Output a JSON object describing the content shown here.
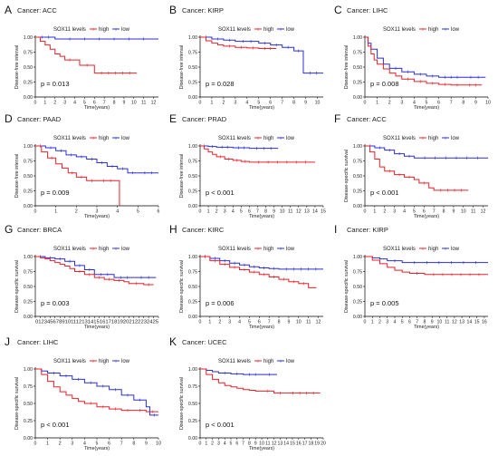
{
  "colors": {
    "high": "#e8202a",
    "low": "#2a2fd6",
    "axis": "#000000"
  },
  "legend": {
    "title": "SOX11 levels",
    "high": "high",
    "low": "low"
  },
  "panels": [
    {
      "letter": "A",
      "title": "Cancer: ACC",
      "ylabel": "Disease-free interval",
      "xlabel": "Time(years)",
      "pvalue": "p = 0.013",
      "p_italic": true
    },
    {
      "letter": "B",
      "title": "Cancer: KIRP",
      "ylabel": "Disease-free interval",
      "xlabel": "Time(years)",
      "pvalue": "p = 0.028",
      "p_italic": true
    },
    {
      "letter": "C",
      "title": "Cancer: LIHC",
      "ylabel": "Disease-free interval",
      "xlabel": "Time(years)",
      "pvalue": "p = 0.008",
      "p_italic": true
    },
    {
      "letter": "D",
      "title": "Cancer: PAAD",
      "ylabel": "Disease-free interval",
      "xlabel": "Time(years)",
      "pvalue": "p = 0.009",
      "p_italic": true
    },
    {
      "letter": "E",
      "title": "Cancer: PRAD",
      "ylabel": "Disease-free interval",
      "xlabel": "Time(years)",
      "pvalue": "p < 0.001",
      "p_italic": true
    },
    {
      "letter": "F",
      "title": "Cancer: ACC",
      "ylabel": "Disease-specific survival",
      "xlabel": "Time(years)",
      "pvalue": "p < 0.001",
      "p_italic": true
    },
    {
      "letter": "G",
      "title": "Cancer: BRCA",
      "ylabel": "Disease-specific survival",
      "xlabel": "Time(years)",
      "pvalue": "p = 0.003",
      "p_italic": true
    },
    {
      "letter": "H",
      "title": "Cancer: KIRC",
      "ylabel": "Disease-specific survival",
      "xlabel": "Time(years)",
      "pvalue": "p = 0.006",
      "p_italic": true
    },
    {
      "letter": "I",
      "title": "Cancer: KIRP",
      "ylabel": "Disease-specific survival",
      "xlabel": "Time(years)",
      "pvalue": "p = 0.005",
      "p_italic": true
    },
    {
      "letter": "J",
      "title": "Cancer: LIHC",
      "ylabel": "Disease-specific survival",
      "xlabel": "Time(years)",
      "pvalue": "p < 0.001",
      "p_italic": true
    },
    {
      "letter": "K",
      "title": "Cancer: UCEC",
      "ylabel": "Disease-specific survival",
      "xlabel": "Time(years)",
      "pvalue": "p < 0.001",
      "p_italic": true
    }
  ],
  "chart_data": [
    {
      "type": "line",
      "title": "Cancer: ACC",
      "xlabel": "Time(years)",
      "ylabel": "Disease-free interval",
      "xlim": [
        0,
        12.5
      ],
      "ylim": [
        0,
        1
      ],
      "xticks": [
        0,
        1,
        2,
        3,
        4,
        5,
        6,
        7,
        8,
        9,
        10,
        11,
        12
      ],
      "yticks": [
        0,
        0.25,
        0.5,
        0.75,
        1.0
      ],
      "series": [
        {
          "name": "high",
          "x": [
            0,
            0.5,
            1.0,
            1.5,
            2.0,
            2.5,
            3.0,
            4.0,
            4.5,
            6.0,
            10.3
          ],
          "y": [
            1.0,
            0.93,
            0.87,
            0.8,
            0.72,
            0.68,
            0.62,
            0.62,
            0.53,
            0.4,
            0.4
          ]
        },
        {
          "name": "low",
          "x": [
            0,
            2.0,
            12.5
          ],
          "y": [
            1.0,
            0.97,
            0.97
          ]
        }
      ]
    },
    {
      "type": "line",
      "title": "Cancer: KIRP",
      "xlabel": "Time(years)",
      "ylabel": "Disease-free interval",
      "xlim": [
        0,
        10.5
      ],
      "ylim": [
        0,
        1
      ],
      "xticks": [
        0,
        1,
        2,
        3,
        4,
        5,
        6,
        7,
        8,
        9,
        10
      ],
      "yticks": [
        0,
        0.25,
        0.5,
        0.75,
        1.0
      ],
      "series": [
        {
          "name": "high",
          "x": [
            0,
            0.5,
            1.0,
            1.5,
            2.0,
            3.0,
            4.0,
            5.0,
            6.5
          ],
          "y": [
            1.0,
            0.94,
            0.9,
            0.87,
            0.85,
            0.83,
            0.82,
            0.81,
            0.81
          ]
        },
        {
          "name": "low",
          "x": [
            0,
            1.0,
            2.0,
            3.0,
            5.0,
            6.0,
            7.0,
            8.0,
            8.8,
            10.5
          ],
          "y": [
            1.0,
            0.97,
            0.95,
            0.93,
            0.9,
            0.87,
            0.83,
            0.77,
            0.4,
            0.4
          ]
        }
      ]
    },
    {
      "type": "line",
      "title": "Cancer: LIHC",
      "xlabel": "Time(years)",
      "ylabel": "Disease-free interval",
      "xlim": [
        0,
        10
      ],
      "ylim": [
        0,
        1
      ],
      "xticks": [
        0,
        1,
        2,
        3,
        4,
        5,
        6,
        7,
        8,
        9,
        10
      ],
      "yticks": [
        0,
        0.25,
        0.5,
        0.75,
        1.0
      ],
      "series": [
        {
          "name": "high",
          "x": [
            0,
            0.25,
            0.5,
            0.75,
            1.0,
            1.5,
            2.0,
            2.5,
            3.0,
            4.0,
            5.0,
            6.0,
            7.0,
            8.0,
            9.5
          ],
          "y": [
            1.0,
            0.85,
            0.72,
            0.62,
            0.55,
            0.47,
            0.4,
            0.35,
            0.3,
            0.26,
            0.23,
            0.21,
            0.2,
            0.2,
            0.2
          ]
        },
        {
          "name": "low",
          "x": [
            0,
            0.25,
            0.5,
            1.0,
            1.5,
            2.0,
            3.0,
            4.0,
            5.0,
            6.0,
            8.0,
            9.8
          ],
          "y": [
            1.0,
            0.9,
            0.8,
            0.65,
            0.55,
            0.48,
            0.42,
            0.38,
            0.35,
            0.33,
            0.33,
            0.33
          ]
        }
      ]
    },
    {
      "type": "line",
      "title": "Cancer: PAAD",
      "xlabel": "Time(years)",
      "ylabel": "Disease-free interval",
      "xlim": [
        0,
        6
      ],
      "ylim": [
        0,
        1
      ],
      "xticks": [
        0,
        1,
        2,
        3,
        4,
        5,
        6
      ],
      "yticks": [
        0,
        0.25,
        0.5,
        0.75,
        1.0
      ],
      "series": [
        {
          "name": "high",
          "x": [
            0,
            0.3,
            0.6,
            1.0,
            1.3,
            1.6,
            2.0,
            2.5,
            3.0,
            4.0,
            4.1
          ],
          "y": [
            1.0,
            0.9,
            0.8,
            0.7,
            0.63,
            0.55,
            0.48,
            0.42,
            0.42,
            0.42,
            0.0
          ]
        },
        {
          "name": "low",
          "x": [
            0,
            0.5,
            1.0,
            1.5,
            2.0,
            2.5,
            3.0,
            3.5,
            4.0,
            4.5,
            5.0,
            6.0
          ],
          "y": [
            1.0,
            0.97,
            0.92,
            0.85,
            0.82,
            0.78,
            0.72,
            0.66,
            0.62,
            0.55,
            0.55,
            0.55
          ]
        }
      ]
    },
    {
      "type": "line",
      "title": "Cancer: PRAD",
      "xlabel": "Time(years)",
      "ylabel": "Disease-free interval",
      "xlim": [
        0,
        15
      ],
      "ylim": [
        0,
        1
      ],
      "xticks": [
        0,
        1,
        2,
        3,
        4,
        5,
        6,
        7,
        8,
        9,
        10,
        11,
        12,
        13,
        14,
        15
      ],
      "yticks": [
        0,
        0.25,
        0.5,
        0.75,
        1.0
      ],
      "series": [
        {
          "name": "high",
          "x": [
            0,
            0.5,
            1.0,
            1.5,
            2.0,
            3.0,
            4.0,
            5.0,
            6.0,
            14.0
          ],
          "y": [
            1.0,
            0.95,
            0.9,
            0.86,
            0.82,
            0.78,
            0.76,
            0.74,
            0.73,
            0.73
          ]
        },
        {
          "name": "low",
          "x": [
            0,
            1.0,
            2.0,
            4.0,
            6.0,
            9.5
          ],
          "y": [
            1.0,
            0.99,
            0.98,
            0.97,
            0.96,
            0.96
          ]
        }
      ]
    },
    {
      "type": "line",
      "title": "Cancer: ACC",
      "xlabel": "Time(years)",
      "ylabel": "Disease-specific survival",
      "xlim": [
        0,
        12.5
      ],
      "ylim": [
        0,
        1
      ],
      "xticks": [
        0,
        1,
        2,
        3,
        4,
        5,
        6,
        7,
        8,
        9,
        10,
        11,
        12
      ],
      "yticks": [
        0,
        0.25,
        0.5,
        0.75,
        1.0
      ],
      "series": [
        {
          "name": "high",
          "x": [
            0,
            0.5,
            1.0,
            1.5,
            2.0,
            3.0,
            4.0,
            5.0,
            5.5,
            6.5,
            7.0,
            10.5
          ],
          "y": [
            1.0,
            0.9,
            0.78,
            0.65,
            0.58,
            0.52,
            0.48,
            0.44,
            0.38,
            0.3,
            0.26,
            0.26
          ]
        },
        {
          "name": "low",
          "x": [
            0,
            1.0,
            2.0,
            3.0,
            4.0,
            5.0,
            12.5
          ],
          "y": [
            1.0,
            0.97,
            0.93,
            0.87,
            0.83,
            0.8,
            0.8
          ]
        }
      ]
    },
    {
      "type": "line",
      "title": "Cancer: BRCA",
      "xlabel": "Time(years)",
      "ylabel": "Disease-specific survival",
      "xlim": [
        0,
        25
      ],
      "ylim": [
        0,
        1
      ],
      "xticks": [
        0,
        1,
        2,
        3,
        4,
        5,
        6,
        7,
        8,
        9,
        10,
        11,
        12,
        13,
        14,
        15,
        16,
        17,
        18,
        19,
        20,
        21,
        22,
        23,
        24,
        25
      ],
      "xticklabels": "012345678910111213141516171819202122232425",
      "yticks": [
        0,
        0.25,
        0.5,
        0.75,
        1.0
      ],
      "series": [
        {
          "name": "high",
          "x": [
            0,
            1,
            2,
            3,
            4,
            5,
            6,
            7,
            8,
            10,
            12,
            14,
            16,
            18,
            19,
            22,
            24
          ],
          "y": [
            1.0,
            0.98,
            0.96,
            0.93,
            0.9,
            0.87,
            0.84,
            0.8,
            0.75,
            0.7,
            0.65,
            0.62,
            0.6,
            0.58,
            0.55,
            0.53,
            0.53
          ]
        },
        {
          "name": "low",
          "x": [
            0,
            2,
            4,
            6,
            8,
            10,
            12,
            16,
            20,
            24.5
          ],
          "y": [
            1.0,
            0.98,
            0.96,
            0.92,
            0.85,
            0.78,
            0.7,
            0.65,
            0.65,
            0.65
          ]
        }
      ]
    },
    {
      "type": "line",
      "title": "Cancer: KIRC",
      "xlabel": "Time(years)",
      "ylabel": "Disease-specific survival",
      "xlim": [
        0,
        12.5
      ],
      "ylim": [
        0,
        1
      ],
      "xticks": [
        0,
        1,
        2,
        3,
        4,
        5,
        6,
        7,
        8,
        9,
        10,
        11,
        12
      ],
      "yticks": [
        0,
        0.25,
        0.5,
        0.75,
        1.0
      ],
      "series": [
        {
          "name": "high",
          "x": [
            0,
            1,
            2,
            3,
            4,
            5,
            6,
            7,
            8,
            9,
            10,
            11,
            11.8
          ],
          "y": [
            1.0,
            0.93,
            0.87,
            0.82,
            0.78,
            0.74,
            0.7,
            0.66,
            0.62,
            0.58,
            0.55,
            0.48,
            0.48
          ]
        },
        {
          "name": "low",
          "x": [
            0,
            1,
            2,
            3,
            4,
            5,
            6,
            7,
            8,
            12.5
          ],
          "y": [
            1.0,
            0.97,
            0.93,
            0.89,
            0.86,
            0.83,
            0.81,
            0.8,
            0.79,
            0.79
          ]
        }
      ]
    },
    {
      "type": "line",
      "title": "Cancer: KIRP",
      "xlabel": "Time(years)",
      "ylabel": "Disease-specific survival",
      "xlim": [
        0,
        16.5
      ],
      "ylim": [
        0,
        1
      ],
      "xticks": [
        0,
        1,
        2,
        3,
        4,
        5,
        6,
        7,
        8,
        9,
        10,
        11,
        12,
        13,
        14,
        15,
        16
      ],
      "yticks": [
        0,
        0.25,
        0.5,
        0.75,
        1.0
      ],
      "series": [
        {
          "name": "high",
          "x": [
            0,
            1,
            2,
            3,
            4,
            5,
            6,
            8,
            16.5
          ],
          "y": [
            1.0,
            0.94,
            0.88,
            0.82,
            0.77,
            0.74,
            0.72,
            0.7,
            0.7
          ]
        },
        {
          "name": "low",
          "x": [
            0,
            1,
            2,
            3,
            5,
            16.5
          ],
          "y": [
            1.0,
            0.98,
            0.96,
            0.93,
            0.9,
            0.9
          ]
        }
      ]
    },
    {
      "type": "line",
      "title": "Cancer: LIHC",
      "xlabel": "Time(years)",
      "ylabel": "Disease-specific survival",
      "xlim": [
        0,
        10
      ],
      "ylim": [
        0,
        1
      ],
      "xticks": [
        0,
        1,
        2,
        3,
        4,
        5,
        6,
        7,
        8,
        9,
        10
      ],
      "yticks": [
        0,
        0.25,
        0.5,
        0.75,
        1.0
      ],
      "series": [
        {
          "name": "high",
          "x": [
            0,
            0.5,
            1.0,
            1.5,
            2.0,
            2.5,
            3.0,
            3.5,
            4.0,
            5.0,
            6.0,
            7.0,
            8.0,
            9.0,
            10.0
          ],
          "y": [
            1.0,
            0.92,
            0.82,
            0.74,
            0.67,
            0.62,
            0.57,
            0.53,
            0.5,
            0.45,
            0.42,
            0.4,
            0.4,
            0.38,
            0.38
          ]
        },
        {
          "name": "low",
          "x": [
            0,
            0.5,
            1.0,
            2.0,
            3.0,
            4.0,
            5.0,
            6.0,
            7.0,
            8.0,
            9.0,
            9.3,
            10.0
          ],
          "y": [
            1.0,
            0.97,
            0.94,
            0.9,
            0.85,
            0.8,
            0.75,
            0.7,
            0.62,
            0.55,
            0.45,
            0.33,
            0.33
          ]
        }
      ]
    },
    {
      "type": "line",
      "title": "Cancer: UCEC",
      "xlabel": "Time(years)",
      "ylabel": "Disease-specific survival",
      "xlim": [
        0,
        20
      ],
      "ylim": [
        0,
        1
      ],
      "xticks": [
        0,
        1,
        2,
        3,
        4,
        5,
        6,
        7,
        8,
        9,
        10,
        11,
        12,
        13,
        14,
        15,
        16,
        17,
        18,
        19,
        20
      ],
      "yticks": [
        0,
        0.25,
        0.5,
        0.75,
        1.0
      ],
      "series": [
        {
          "name": "high",
          "x": [
            0,
            1,
            2,
            3,
            4,
            5,
            6,
            7,
            8,
            9,
            10,
            12,
            14,
            19.5
          ],
          "y": [
            1.0,
            0.92,
            0.85,
            0.8,
            0.76,
            0.74,
            0.72,
            0.7,
            0.69,
            0.68,
            0.68,
            0.65,
            0.65,
            0.65
          ]
        },
        {
          "name": "low",
          "x": [
            0,
            1,
            2,
            3,
            5,
            7,
            10,
            12.5
          ],
          "y": [
            1.0,
            0.98,
            0.96,
            0.94,
            0.93,
            0.92,
            0.92,
            0.92
          ]
        }
      ]
    }
  ]
}
